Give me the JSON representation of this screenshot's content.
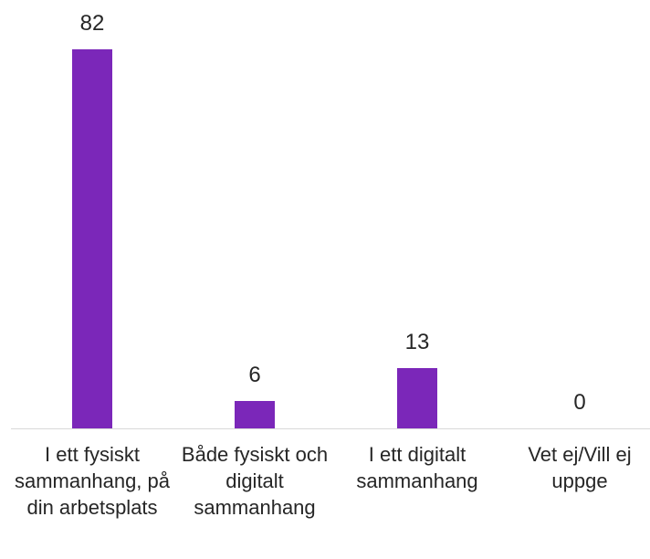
{
  "chart_data": {
    "type": "bar",
    "categories": [
      "I ett fysiskt sammanhang, på din arbetsplats",
      "Både fysiskt och digitalt sammanhang",
      "I ett digitalt sammanhang",
      "Vet ej/Vill ej uppge"
    ],
    "values": [
      82,
      6,
      13,
      0
    ],
    "color": "#7b27b9"
  }
}
